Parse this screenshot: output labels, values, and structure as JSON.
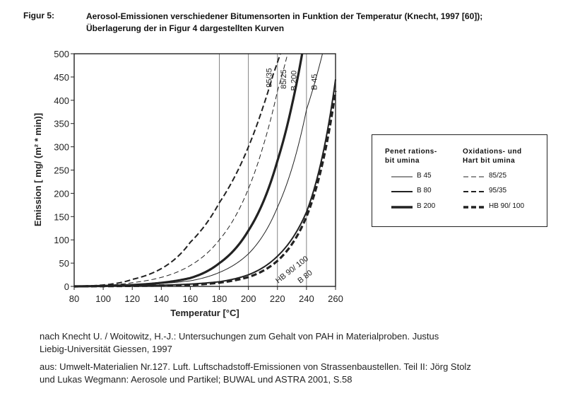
{
  "figure": {
    "number": "Figur 5:",
    "title_line1": "Aerosol-Emissionen verschiedener Bitumensorten in Funktion der Temperatur (Knecht, 1997 [60]);",
    "title_line2": "Überlagerung der in Figur 4 dargestellten Kurven"
  },
  "chart_data": {
    "type": "line",
    "xlabel": "Temperatur   [°C]",
    "ylabel": "Emission   [ mg/ (m² * min)]",
    "xlim": [
      80,
      260
    ],
    "ylim": [
      0,
      500
    ],
    "xticks": [
      80,
      100,
      120,
      140,
      160,
      180,
      200,
      220,
      240,
      260
    ],
    "yticks": [
      0,
      50,
      100,
      150,
      200,
      250,
      300,
      350,
      400,
      450,
      500
    ],
    "grid": "vertical lines at x = 180 to 260",
    "series": [
      {
        "name": "B 45",
        "style": "thin-solid",
        "x": [
          80,
          120,
          160,
          180,
          200,
          220,
          240,
          251
        ],
        "y": [
          0,
          3,
          12,
          30,
          70,
          170,
          380,
          500
        ]
      },
      {
        "name": "B 80",
        "style": "medium-solid",
        "x": [
          80,
          120,
          160,
          180,
          200,
          220,
          240,
          260
        ],
        "y": [
          0,
          1,
          5,
          10,
          25,
          65,
          160,
          445
        ]
      },
      {
        "name": "B 200",
        "style": "thick-solid",
        "x": [
          80,
          120,
          160,
          180,
          200,
          220,
          230,
          237
        ],
        "y": [
          0,
          3,
          18,
          50,
          120,
          270,
          390,
          500
        ]
      },
      {
        "name": "85/25",
        "style": "thin-dash",
        "x": [
          80,
          120,
          160,
          180,
          200,
          210,
          220,
          227
        ],
        "y": [
          0,
          8,
          45,
          100,
          210,
          300,
          420,
          500
        ]
      },
      {
        "name": "95/35",
        "style": "medium-dash",
        "x": [
          80,
          120,
          160,
          180,
          200,
          210,
          217,
          222
        ],
        "y": [
          0,
          15,
          95,
          180,
          300,
          385,
          455,
          500
        ]
      },
      {
        "name": "HB 90/ 100",
        "style": "thick-dash",
        "x": [
          80,
          120,
          160,
          180,
          200,
          220,
          240,
          260
        ],
        "y": [
          0,
          1,
          3,
          8,
          20,
          55,
          150,
          420
        ]
      }
    ],
    "curve_labels": [
      "95/35",
      "85/25",
      "B 200",
      "B 45",
      "HB 90/ 100",
      "B 80"
    ]
  },
  "legend": {
    "header_left": [
      "Penet rations-",
      "bit umina"
    ],
    "header_right": [
      "Oxidations-    und",
      "Hart bit umina"
    ],
    "left_items": [
      "B 45",
      "B 80",
      "B 200"
    ],
    "right_items": [
      "85/25",
      "95/35",
      "HB 90/ 100"
    ]
  },
  "footer": {
    "line1": "nach Knecht U. / Woitowitz, H.-J.: Untersuchungen zum Gehalt von PAH in Materialproben. Justus",
    "line2": "Liebig-Universität Giessen, 1997",
    "line3": "aus: Umwelt-Materialien Nr.127. Luft. Luftschadstoff-Emissionen von Strassenbaustellen. Teil II: Jörg Stolz",
    "line4": "und Lukas Wegmann: Aerosole und Partikel; BUWAL und ASTRA 2001, S.58"
  }
}
